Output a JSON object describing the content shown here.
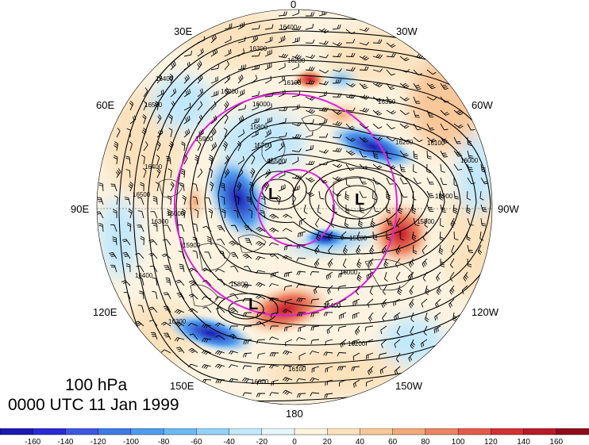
{
  "level": "100 hPa",
  "valid_time": "0000 UTC 11 Jan 1999",
  "longitude_labels": {
    "lon_0": "0",
    "lon_30w": "30W",
    "lon_60w": "60W",
    "lon_90w": "90W",
    "lon_120w": "120W",
    "lon_150w": "150W",
    "lon_180": "180",
    "lon_150e": "150E",
    "lon_120e": "120E",
    "lon_90e": "90E",
    "lon_60e": "60E",
    "lon_30e": "30E"
  },
  "pressure_centers": [
    {
      "label": "L",
      "location": "western Arctic lobe"
    },
    {
      "label": "L",
      "location": "northeast Canada"
    },
    {
      "label": "L",
      "location": "Kamchatka / North Pacific"
    }
  ],
  "contour_labels": [
    "16400",
    "16300",
    "16200",
    "16200",
    "16100",
    "16000",
    "15900",
    "15800",
    "15700",
    "15500",
    "16300",
    "16200",
    "16100",
    "16000",
    "15900",
    "15800",
    "15700",
    "16400",
    "16500",
    "16500",
    "16400",
    "16300",
    "16000",
    "15900",
    "16400",
    "16300",
    "15800",
    "16400",
    "16200",
    "16000",
    "16100",
    "16600"
  ],
  "colorbar": {
    "tick_labels": [
      "-160",
      "-140",
      "-120",
      "-100",
      "-80",
      "-60",
      "-40",
      "-20",
      "0",
      "20",
      "40",
      "60",
      "80",
      "100",
      "120",
      "140",
      "160"
    ],
    "colors": [
      "#1a1ab0",
      "#2a2ad6",
      "#3f56e0",
      "#3f7ae6",
      "#4f9bee",
      "#6cb9f4",
      "#93d2f8",
      "#c2e8fb",
      "#e6f6fd",
      "#fdf5dc",
      "#fbe2bd",
      "#f8c79a",
      "#f2a97a",
      "#ec8463",
      "#e45a4b",
      "#d33135",
      "#b81a26",
      "#8f0d1a"
    ]
  },
  "colors": {
    "contour": "#000000",
    "circle": "#e020e0",
    "land": "#333333"
  }
}
